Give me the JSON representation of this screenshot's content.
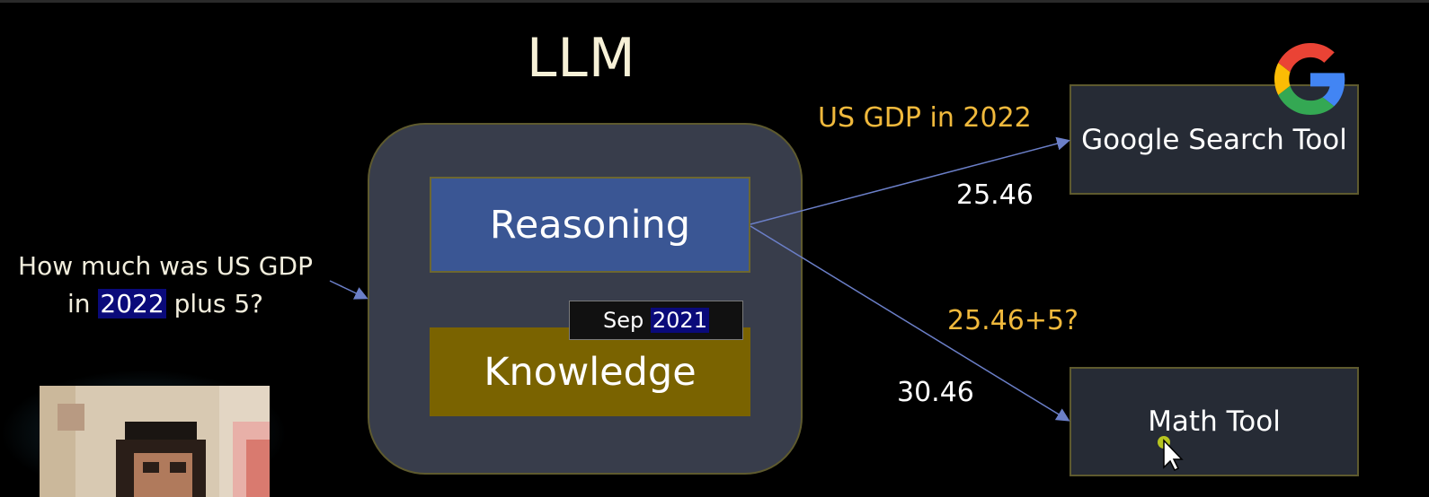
{
  "diagram": {
    "title": "LLM",
    "reasoning_label": "Reasoning",
    "knowledge_label": "Knowledge",
    "cutoff_month": "Sep",
    "cutoff_year": "2021",
    "question_line1": "How much was US GDP",
    "question_line2_pre": "in",
    "question_line2_year": "2022",
    "question_line2_post": "plus 5?",
    "google_tool_label": "Google Search Tool",
    "math_tool_label": "Math Tool",
    "search_query": "US GDP in 2022",
    "search_result": "25.46",
    "math_query": "25.46+5?",
    "math_result": "30.46"
  },
  "colors": {
    "background": "#000000",
    "llm_box": "#383d4b",
    "reasoning_box": "#3a5694",
    "knowledge_box": "#7a6300",
    "tool_box": "#262b35",
    "query_text": "#f0b93c",
    "highlight": "#0a0a7a"
  },
  "icons": {
    "google_logo": "google-g-logo",
    "cursor": "mouse-pointer-icon"
  }
}
